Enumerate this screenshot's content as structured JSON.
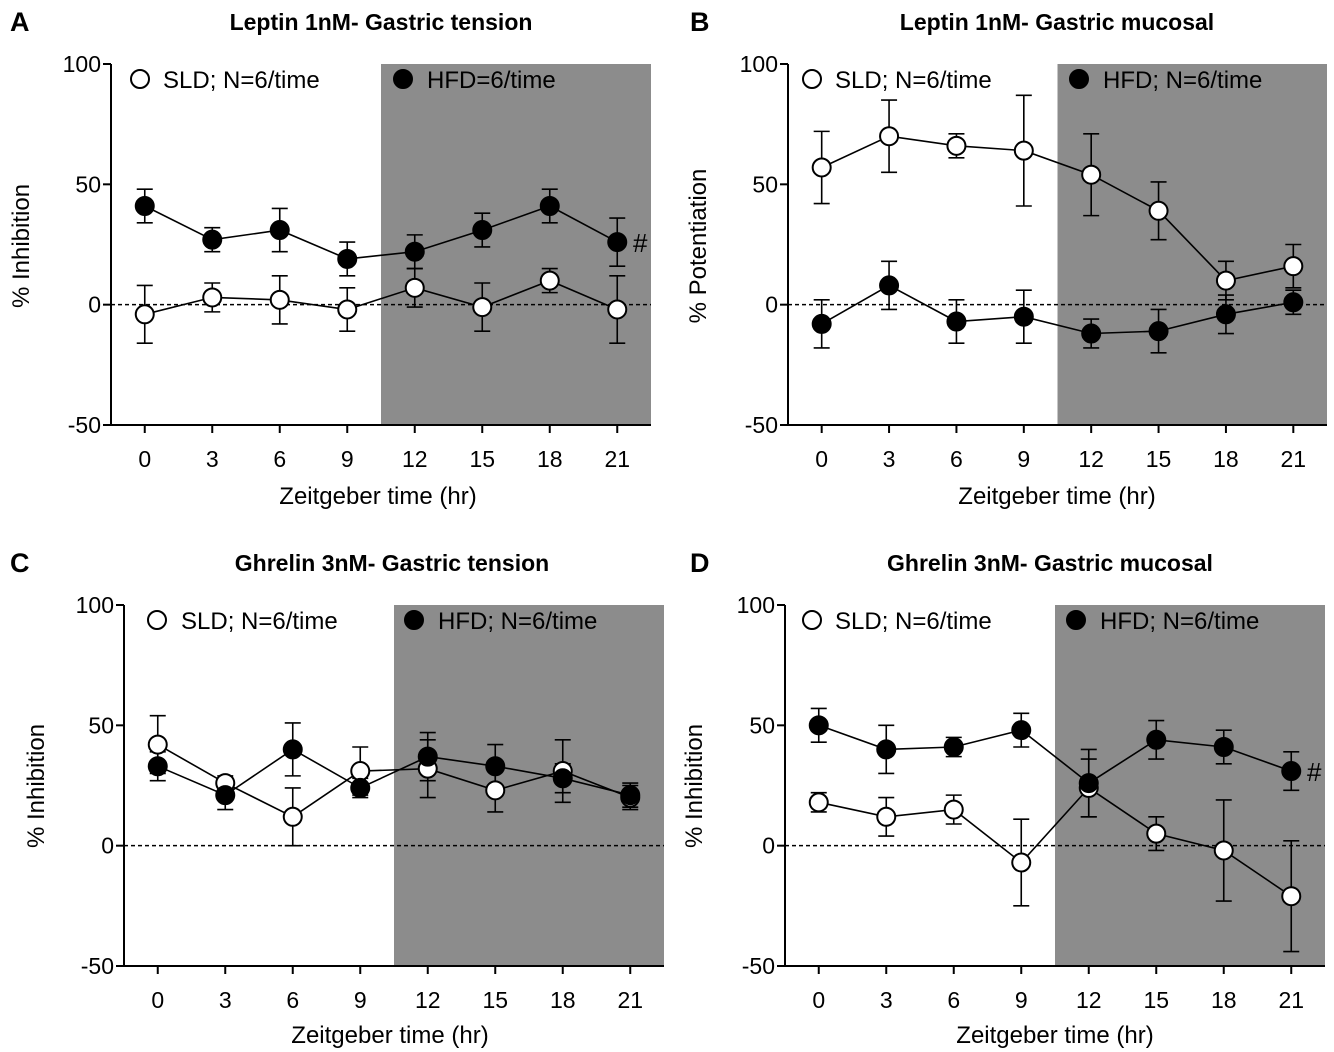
{
  "chart_data": [
    {
      "panel": "A",
      "type": "line",
      "title": "Leptin 1nM- Gastric tension",
      "xlabel": "Zeitgeber time (hr)",
      "ylabel": "% Inhibition",
      "x": [
        0,
        3,
        6,
        9,
        12,
        15,
        18,
        21
      ],
      "xlim": [
        -1.5,
        22.5
      ],
      "ylim": [
        -50,
        100
      ],
      "yticks": [
        -50,
        0,
        50,
        100
      ],
      "dark_phase": [
        10.5,
        22.5
      ],
      "shading_color": "#8c8c8c",
      "zero_line": "dashed",
      "series": [
        {
          "name": "SLD; N=6/time",
          "marker": "open-circle",
          "values": [
            -4,
            3,
            2,
            -2,
            7,
            -1,
            10,
            -2
          ],
          "error": [
            12,
            6,
            10,
            9,
            8,
            10,
            5,
            14
          ]
        },
        {
          "name": "HFD=6/time",
          "marker": "filled-circle",
          "values": [
            41,
            27,
            31,
            19,
            22,
            31,
            41,
            26
          ],
          "error": [
            7,
            5,
            9,
            7,
            7,
            7,
            7,
            10
          ]
        }
      ],
      "annotation": "#"
    },
    {
      "panel": "B",
      "type": "line",
      "title": "Leptin 1nM- Gastric mucosal",
      "xlabel": "Zeitgeber time (hr)",
      "ylabel": "% Potentiation",
      "x": [
        0,
        3,
        6,
        9,
        12,
        15,
        18,
        21
      ],
      "xlim": [
        -1.5,
        22.5
      ],
      "ylim": [
        -50,
        100
      ],
      "yticks": [
        -50,
        0,
        50,
        100
      ],
      "dark_phase": [
        10.5,
        22.5
      ],
      "shading_color": "#8c8c8c",
      "zero_line": "dashed",
      "series": [
        {
          "name": "SLD; N=6/time",
          "marker": "open-circle",
          "values": [
            57,
            70,
            66,
            64,
            54,
            39,
            10,
            16
          ],
          "error": [
            15,
            15,
            5,
            23,
            17,
            12,
            8,
            9
          ]
        },
        {
          "name": "HFD; N=6/time",
          "marker": "filled-circle",
          "values": [
            -8,
            8,
            -7,
            -5,
            -12,
            -11,
            -4,
            1
          ],
          "error": [
            10,
            10,
            9,
            11,
            6,
            9,
            8,
            5
          ]
        }
      ],
      "annotation": ""
    },
    {
      "panel": "C",
      "type": "line",
      "title": "Ghrelin 3nM- Gastric tension",
      "xlabel": "Zeitgeber time (hr)",
      "ylabel": "% Inhibition",
      "x": [
        0,
        3,
        6,
        9,
        12,
        15,
        18,
        21
      ],
      "xlim": [
        -1.5,
        22.5
      ],
      "ylim": [
        -50,
        100
      ],
      "yticks": [
        -50,
        0,
        50,
        100
      ],
      "dark_phase": [
        10.5,
        22.5
      ],
      "shading_color": "#8c8c8c",
      "zero_line": "dashed",
      "series": [
        {
          "name": "SLD; N=6/time",
          "marker": "open-circle",
          "values": [
            42,
            26,
            12,
            31,
            32,
            23,
            31,
            20
          ],
          "error": [
            12,
            3,
            12,
            10,
            12,
            9,
            13,
            5
          ]
        },
        {
          "name": "HFD; N=6/time",
          "marker": "filled-circle",
          "values": [
            33,
            21,
            40,
            24,
            37,
            33,
            28,
            21
          ],
          "error": [
            6,
            6,
            11,
            4,
            10,
            9,
            6,
            5
          ]
        }
      ],
      "annotation": ""
    },
    {
      "panel": "D",
      "type": "line",
      "title": "Ghrelin 3nM- Gastric mucosal",
      "xlabel": "Zeitgeber time (hr)",
      "ylabel": "% Inhibition",
      "x": [
        0,
        3,
        6,
        9,
        12,
        15,
        18,
        21
      ],
      "xlim": [
        -1.5,
        22.5
      ],
      "ylim": [
        -50,
        100
      ],
      "yticks": [
        -50,
        0,
        50,
        100
      ],
      "dark_phase": [
        10.5,
        22.5
      ],
      "shading_color": "#8c8c8c",
      "zero_line": "dashed",
      "series": [
        {
          "name": "SLD; N=6/time",
          "marker": "open-circle",
          "values": [
            18,
            12,
            15,
            -7,
            24,
            5,
            -2,
            -21
          ],
          "error": [
            4,
            8,
            6,
            18,
            12,
            7,
            21,
            23
          ]
        },
        {
          "name": "HFD; N=6/time",
          "marker": "filled-circle",
          "values": [
            50,
            40,
            41,
            48,
            26,
            44,
            41,
            31
          ],
          "error": [
            7,
            10,
            4,
            7,
            14,
            8,
            7,
            8
          ]
        }
      ],
      "annotation": "#"
    }
  ]
}
